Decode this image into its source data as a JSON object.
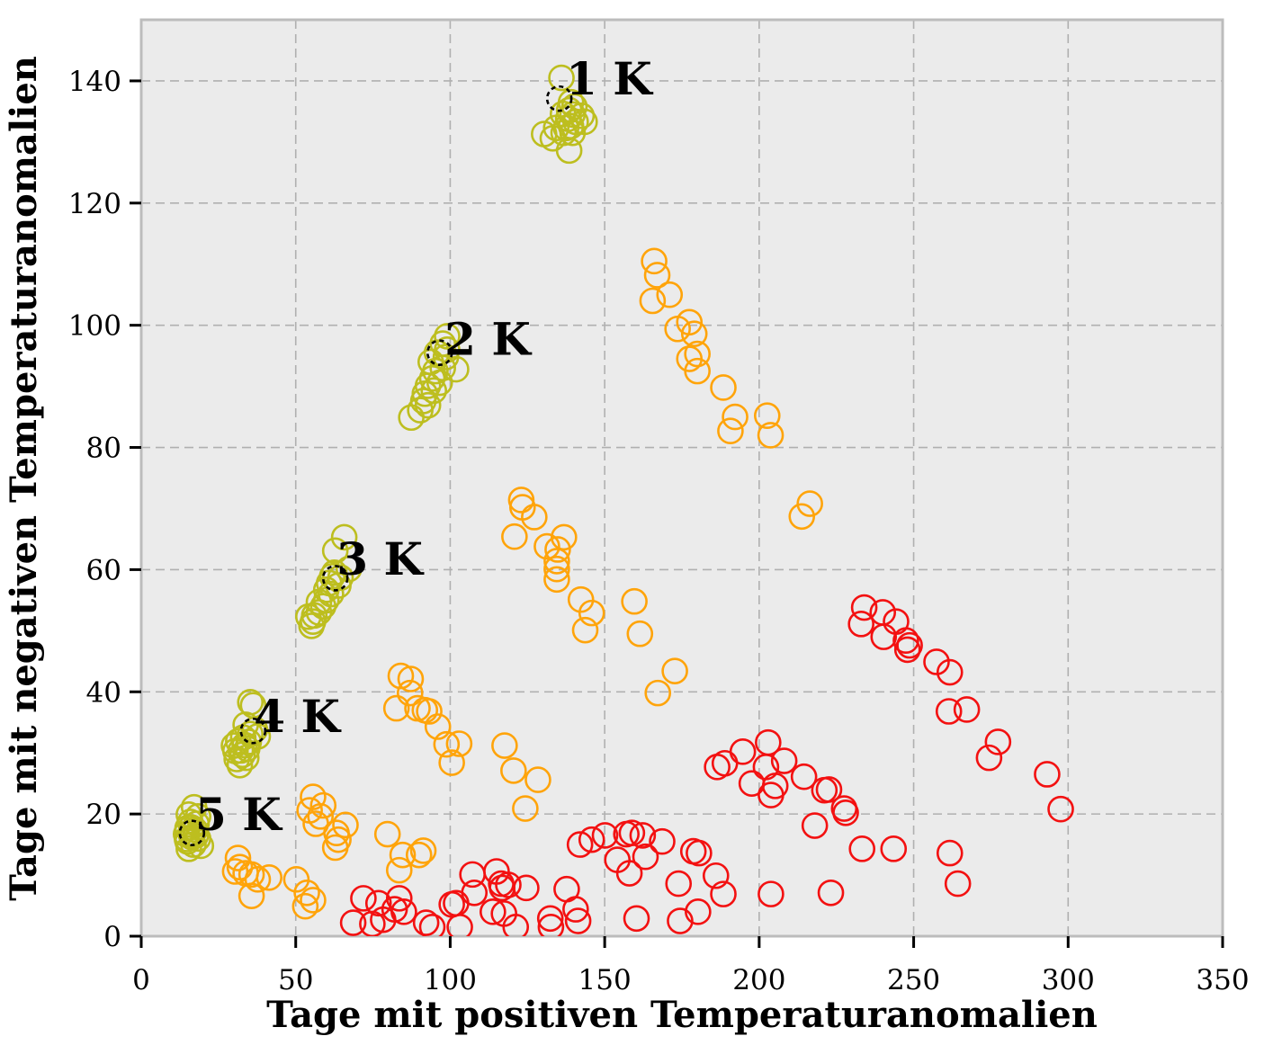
{
  "figure": {
    "background": "#ffffff",
    "plot_background": "#ebebeb",
    "grid_color": "#b0b0b0",
    "spine_color": "#bcbcbc",
    "tick_color": "#000000",
    "text_color": "#000000"
  },
  "chart_data": {
    "type": "scatter",
    "title": "",
    "xlabel": "Tage mit positiven Temperaturanomalien",
    "ylabel": "Tage mit negativen Temperaturanomalien",
    "xlim": [
      0,
      350
    ],
    "ylim": [
      0,
      150
    ],
    "xticks": [
      0,
      50,
      100,
      150,
      200,
      250,
      300,
      350
    ],
    "yticks": [
      0,
      20,
      40,
      60,
      80,
      100,
      120,
      140
    ],
    "grid": true,
    "grid_style": "dashed",
    "legend_position": "none",
    "marker": "open-circle",
    "annotations": [
      {
        "text": "1 K",
        "x": 151.4,
        "y": 140.3
      },
      {
        "text": "2 K",
        "x": 112.1,
        "y": 97.7
      },
      {
        "text": "3 K",
        "x": 77.2,
        "y": 61.7
      },
      {
        "text": "4 K",
        "x": 50.4,
        "y": 35.9
      },
      {
        "text": "5 K",
        "x": 31.4,
        "y": 19.9
      }
    ],
    "series": [
      {
        "name": "olive-clusters",
        "color": "#bdbe1f",
        "dashed": false,
        "points": [
          [
            136,
            140.5
          ],
          [
            139.1,
            136.5
          ],
          [
            138.5,
            135.2
          ],
          [
            139.6,
            134.5
          ],
          [
            138.2,
            133.8
          ],
          [
            140.6,
            133.3
          ],
          [
            139.1,
            132.6
          ],
          [
            137.5,
            132.3
          ],
          [
            142.5,
            134.3
          ],
          [
            143.5,
            133.3
          ],
          [
            136.7,
            131.5
          ],
          [
            139.6,
            131.5
          ],
          [
            130.4,
            131.3
          ],
          [
            134.3,
            132.3
          ],
          [
            138.5,
            128.6
          ],
          [
            133.2,
            130.6
          ],
          [
            136.5,
            134.6
          ],
          [
            140.2,
            135.8
          ],
          [
            99,
            98.2
          ],
          [
            97.6,
            97
          ],
          [
            99,
            96
          ],
          [
            95.7,
            95.5
          ],
          [
            98.6,
            94.8
          ],
          [
            93.7,
            94
          ],
          [
            97.6,
            93
          ],
          [
            95.2,
            92.5
          ],
          [
            101.9,
            92.8
          ],
          [
            94.2,
            91.3
          ],
          [
            96.6,
            90.6
          ],
          [
            92.8,
            90.1
          ],
          [
            94.7,
            89.3
          ],
          [
            91.8,
            88.8
          ],
          [
            91.3,
            87.6
          ],
          [
            92.8,
            86.9
          ],
          [
            90.3,
            86.1
          ],
          [
            87.4,
            84.9
          ],
          [
            65.7,
            65.3
          ],
          [
            62.8,
            63.1
          ],
          [
            67.2,
            60.1
          ],
          [
            61.8,
            58.9
          ],
          [
            63.8,
            57.4
          ],
          [
            59.9,
            56.7
          ],
          [
            61.4,
            56
          ],
          [
            59.9,
            55
          ],
          [
            57.5,
            54.7
          ],
          [
            58.9,
            54
          ],
          [
            57.5,
            53
          ],
          [
            56,
            52.5
          ],
          [
            55.6,
            51.5
          ],
          [
            54.1,
            52.3
          ],
          [
            55.1,
            50.8
          ],
          [
            60.8,
            57.8
          ],
          [
            62.5,
            59.5
          ],
          [
            64.5,
            58.7
          ],
          [
            35.3,
            38.3
          ],
          [
            36.2,
            37.8
          ],
          [
            33.8,
            34.6
          ],
          [
            35.3,
            33.1
          ],
          [
            37.7,
            32.7
          ],
          [
            31.4,
            31.9
          ],
          [
            30,
            31.2
          ],
          [
            34.3,
            30.7
          ],
          [
            32.8,
            29.7
          ],
          [
            30.9,
            29
          ],
          [
            31.9,
            28
          ],
          [
            33,
            32.5
          ],
          [
            34.8,
            31.8
          ],
          [
            32.2,
            30.4
          ],
          [
            36.8,
            33.8
          ],
          [
            34,
            29.2
          ],
          [
            30.5,
            30.3
          ],
          [
            33.5,
            31.3
          ],
          [
            17.1,
            21.1
          ],
          [
            15.4,
            19.9
          ],
          [
            18.4,
            19.6
          ],
          [
            15.9,
            18.7
          ],
          [
            17.9,
            18.4
          ],
          [
            15,
            17.7
          ],
          [
            17.4,
            17.4
          ],
          [
            14.5,
            16.7
          ],
          [
            16.4,
            16.2
          ],
          [
            18.4,
            16
          ],
          [
            15,
            15.5
          ],
          [
            16.9,
            15
          ],
          [
            15.4,
            14.3
          ],
          [
            19.3,
            14.8
          ],
          [
            16,
            16.8
          ],
          [
            17.7,
            16.5
          ],
          [
            14.8,
            15.9
          ],
          [
            16.2,
            17.8
          ]
        ]
      },
      {
        "name": "orange-band",
        "color": "#ffa40a",
        "dashed": false,
        "points": [
          [
            166,
            110.5
          ],
          [
            167,
            108.2
          ],
          [
            171,
            105
          ],
          [
            165.5,
            104
          ],
          [
            177.4,
            100.5
          ],
          [
            173.6,
            99.4
          ],
          [
            179,
            98.6
          ],
          [
            180,
            95.3
          ],
          [
            177.4,
            94.5
          ],
          [
            180,
            92.5
          ],
          [
            188.4,
            89.8
          ],
          [
            192.2,
            85
          ],
          [
            190.7,
            82.7
          ],
          [
            202.6,
            85.2
          ],
          [
            203.7,
            82
          ],
          [
            216.4,
            70.8
          ],
          [
            213.8,
            68.7
          ],
          [
            123,
            71.4
          ],
          [
            123.4,
            70.2
          ],
          [
            127.2,
            68.6
          ],
          [
            120.8,
            65.4
          ],
          [
            136.8,
            65.3
          ],
          [
            131.3,
            63.8
          ],
          [
            134.8,
            63.3
          ],
          [
            134.5,
            61.4
          ],
          [
            134.5,
            60.1
          ],
          [
            134.5,
            58.4
          ],
          [
            142.3,
            55.1
          ],
          [
            145.8,
            52.9
          ],
          [
            143.7,
            50.1
          ],
          [
            159.6,
            54.8
          ],
          [
            161.4,
            49.5
          ],
          [
            172.7,
            43.4
          ],
          [
            167.2,
            39.8
          ],
          [
            84,
            42.6
          ],
          [
            87.2,
            42.1
          ],
          [
            87,
            39.8
          ],
          [
            82.6,
            37.3
          ],
          [
            89.4,
            37.3
          ],
          [
            91.8,
            37
          ],
          [
            93.2,
            36.8
          ],
          [
            96,
            34.3
          ],
          [
            98.8,
            31.4
          ],
          [
            102.9,
            31.5
          ],
          [
            100.5,
            28.4
          ],
          [
            117.6,
            31.2
          ],
          [
            120.5,
            27.1
          ],
          [
            128.4,
            25.6
          ],
          [
            124.3,
            20.9
          ],
          [
            55.6,
            22.8
          ],
          [
            58.9,
            21.4
          ],
          [
            54.5,
            20.6
          ],
          [
            58,
            19.6
          ],
          [
            56.5,
            18.4
          ],
          [
            66.1,
            18.2
          ],
          [
            63.2,
            16.9
          ],
          [
            63.8,
            15.8
          ],
          [
            62.8,
            14.5
          ],
          [
            79.7,
            16.7
          ],
          [
            84.6,
            13.3
          ],
          [
            89.9,
            13.3
          ],
          [
            83.5,
            10.8
          ],
          [
            91.3,
            14
          ],
          [
            31.3,
            12.8
          ],
          [
            31.9,
            11.3
          ],
          [
            30.4,
            10.6
          ],
          [
            33.8,
            10.3
          ],
          [
            35.7,
            10.1
          ],
          [
            37.7,
            9.3
          ],
          [
            41.4,
            9.6
          ],
          [
            35.7,
            6.6
          ],
          [
            50.2,
            9.3
          ],
          [
            53.6,
            7.1
          ],
          [
            55.6,
            5.9
          ],
          [
            53.1,
            4.9
          ]
        ]
      },
      {
        "name": "red-band",
        "color": "#f31111",
        "dashed": false,
        "points": [
          [
            234,
            53.8
          ],
          [
            233,
            51.1
          ],
          [
            240,
            53
          ],
          [
            244.3,
            51.5
          ],
          [
            240.3,
            49
          ],
          [
            247.5,
            48.4
          ],
          [
            248.7,
            47.6
          ],
          [
            248,
            46.9
          ],
          [
            257.4,
            44.9
          ],
          [
            261.7,
            43.2
          ],
          [
            261.4,
            36.8
          ],
          [
            267.2,
            37.1
          ],
          [
            277.3,
            31.8
          ],
          [
            274.4,
            29.2
          ],
          [
            293.2,
            26.5
          ],
          [
            297.6,
            20.8
          ],
          [
            222.6,
            24
          ],
          [
            227.5,
            20.9
          ],
          [
            186.4,
            27.7
          ],
          [
            188.9,
            28.3
          ],
          [
            194.7,
            30.2
          ],
          [
            202.9,
            31.7
          ],
          [
            202.2,
            27.7
          ],
          [
            208.1,
            28.7
          ],
          [
            197.6,
            25
          ],
          [
            205.2,
            24.6
          ],
          [
            203.8,
            23.1
          ],
          [
            214.5,
            26.1
          ],
          [
            221.1,
            23.9
          ],
          [
            228,
            20.2
          ],
          [
            218,
            18.1
          ],
          [
            233.3,
            14.3
          ],
          [
            243.5,
            14.3
          ],
          [
            180.5,
            13.6
          ],
          [
            186,
            9.9
          ],
          [
            188.4,
            6.9
          ],
          [
            203.8,
            6.9
          ],
          [
            223.2,
            7.1
          ],
          [
            261.7,
            13.6
          ],
          [
            264.3,
            8.6
          ],
          [
            107.2,
            10.1
          ],
          [
            107.8,
            7.1
          ],
          [
            101.9,
            5.4
          ],
          [
            100.5,
            5.2
          ],
          [
            103.1,
            1.5
          ],
          [
            94.2,
            1.5
          ],
          [
            115,
            10.6
          ],
          [
            116.5,
            8.6
          ],
          [
            116.8,
            7.9
          ],
          [
            118.8,
            8.4
          ],
          [
            113.8,
            4
          ],
          [
            117.4,
            3.7
          ],
          [
            124.6,
            7.9
          ],
          [
            121.2,
            1.5
          ],
          [
            137.7,
            7.7
          ],
          [
            132.4,
            2.9
          ],
          [
            132.6,
            1.5
          ],
          [
            140.6,
            4.4
          ],
          [
            141.4,
            2.5
          ],
          [
            142,
            15
          ],
          [
            145.8,
            15.8
          ],
          [
            150.1,
            16.5
          ],
          [
            157,
            16.7
          ],
          [
            158.8,
            16.9
          ],
          [
            162.3,
            16.5
          ],
          [
            154.1,
            12.5
          ],
          [
            158,
            10.3
          ],
          [
            163.2,
            13
          ],
          [
            168.6,
            15.5
          ],
          [
            178.7,
            13.9
          ],
          [
            173.9,
            8.6
          ],
          [
            160.3,
            2.9
          ],
          [
            174.4,
            2.5
          ],
          [
            180.2,
            4
          ],
          [
            71.9,
            6.2
          ],
          [
            76.8,
            5.4
          ],
          [
            68.6,
            2.2
          ],
          [
            74.8,
            2
          ],
          [
            78.3,
            2.7
          ],
          [
            82,
            4.4
          ],
          [
            83.5,
            6.2
          ],
          [
            85,
            4
          ],
          [
            92.2,
            2.2
          ]
        ]
      },
      {
        "name": "black-dashed-markers",
        "color": "#000000",
        "dashed": true,
        "points": [
          [
            135.3,
            137.1
          ],
          [
            96.6,
            95.5
          ],
          [
            62.8,
            58.6
          ],
          [
            36.2,
            33.6
          ],
          [
            16.4,
            16.9
          ]
        ]
      }
    ]
  }
}
